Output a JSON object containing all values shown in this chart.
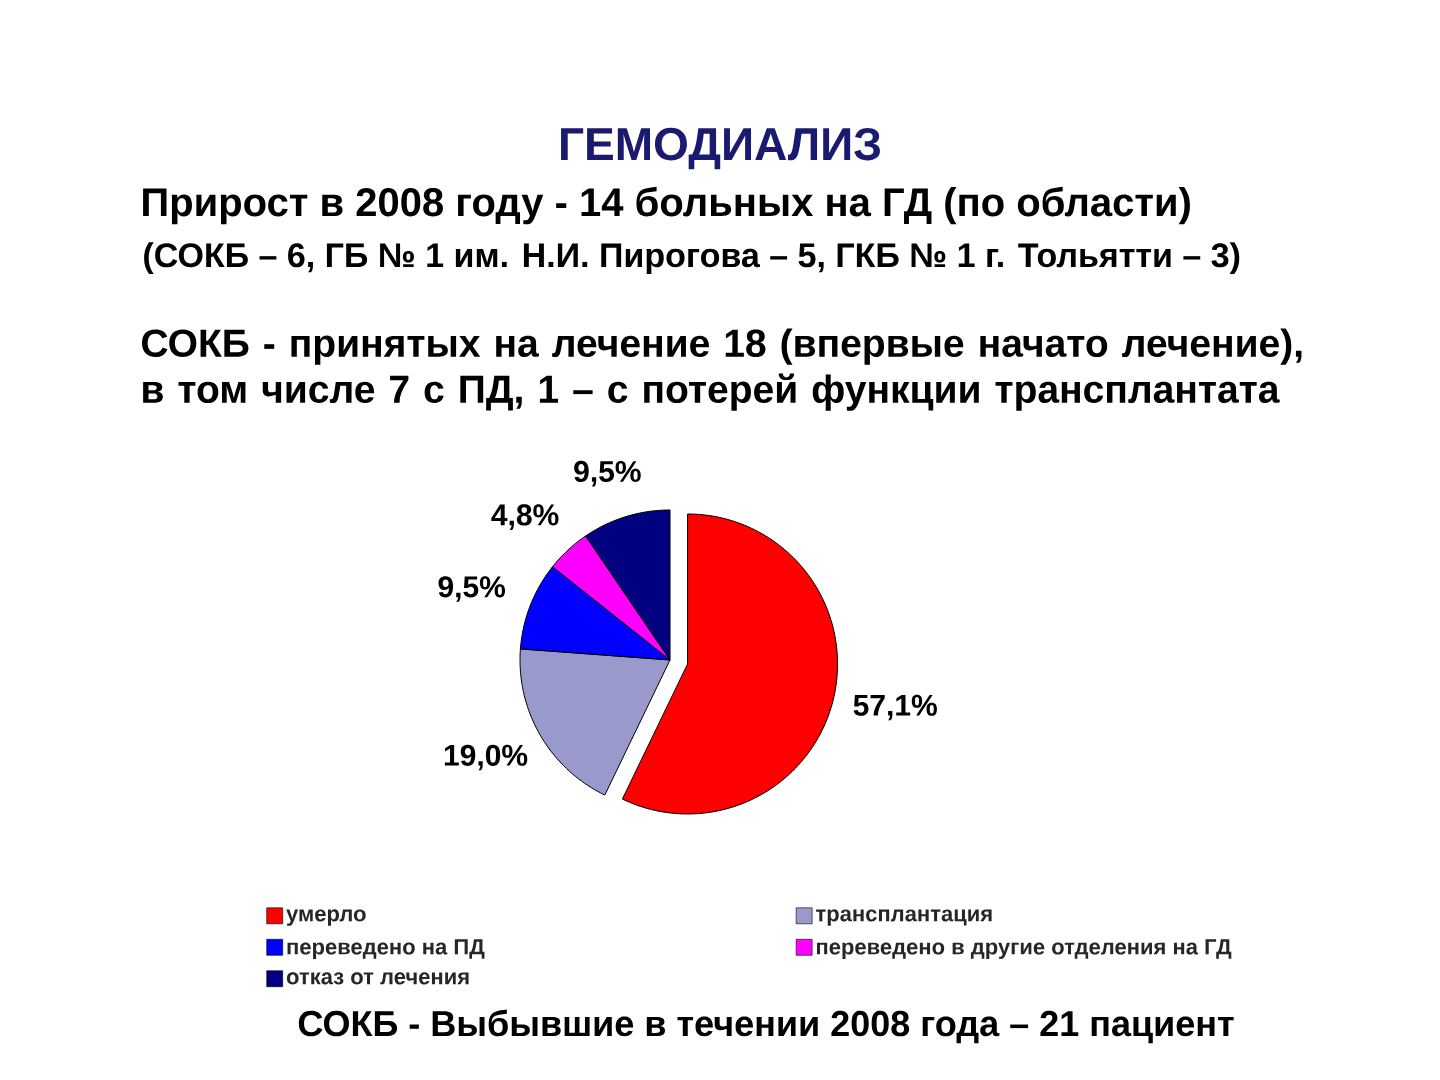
{
  "chart_data": {
    "type": "pie",
    "title": "ГЕМОДИАЛИЗ",
    "annotations": [
      "Прирост в 2008 году - 14 больных на ГД (по области)",
      "(СОКБ – 6, ГБ № 1 им. Н.И. Пирогова – 5, ГКБ № 1 г. Тольятти – 3)",
      "СОКБ - принятых на лечение 18 (впервые начато лечение), в том числе  7 с ПД, 1 – с потерей функции трансплантата",
      "СОКБ - Выбывшие в течении 2008 года – 21 пациент"
    ],
    "categories": [
      "умерло",
      "трансплантация",
      "переведено на ПД",
      "переведено в другие отделения на ГД",
      "отказ от лечения"
    ],
    "values": [
      57.1,
      19.0,
      9.5,
      4.8,
      9.5
    ],
    "colors": [
      "#ff0000",
      "#9999cc",
      "#0000ff",
      "#ff00ff",
      "#000080"
    ],
    "value_labels": [
      "57,1%",
      "19,0%",
      "9,5%",
      "4,8%",
      "9,5%"
    ],
    "legend": "bottom"
  }
}
